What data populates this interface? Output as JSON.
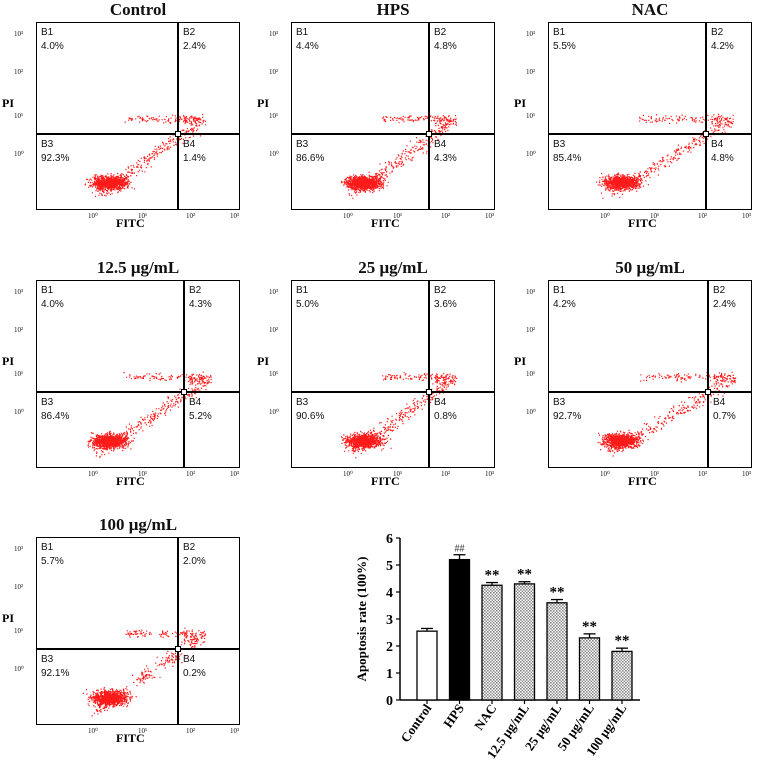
{
  "axis": {
    "x_label": "FITC",
    "y_label": "PI",
    "x_ticks": [
      "10⁰",
      "10¹",
      "10²",
      "10³"
    ],
    "y_ticks": [
      "10³",
      "10²",
      "10¹",
      "10⁰"
    ]
  },
  "panels": [
    {
      "title": "Control",
      "B1": "4.0%",
      "B2": "2.4%",
      "B3": "92.3%",
      "B4": "1.4%"
    },
    {
      "title": "HPS",
      "B1": "4.4%",
      "B2": "4.8%",
      "B3": "86.6%",
      "B4": "4.3%"
    },
    {
      "title": "NAC",
      "B1": "5.5%",
      "B2": "4.2%",
      "B3": "85.4%",
      "B4": "4.8%"
    },
    {
      "title": "12.5 μg/mL",
      "B1": "4.0%",
      "B2": "4.3%",
      "B3": "86.4%",
      "B4": "5.2%"
    },
    {
      "title": "25 μg/mL",
      "B1": "5.0%",
      "B2": "3.6%",
      "B3": "90.6%",
      "B4": "0.8%"
    },
    {
      "title": "50 μg/mL",
      "B1": "4.2%",
      "B2": "2.4%",
      "B3": "92.7%",
      "B4": "0.7%"
    },
    {
      "title": "100 μg/mL",
      "B1": "5.7%",
      "B2": "2.0%",
      "B3": "92.1%",
      "B4": "0.2%"
    }
  ],
  "quadrant_names": [
    "B1",
    "B2",
    "B3",
    "B4"
  ],
  "chart_data": {
    "type": "bar",
    "title": "",
    "xlabel": "",
    "ylabel": "Apoptosis rate (100%)",
    "ylim": [
      0,
      6
    ],
    "yticks": [
      "0",
      "1",
      "2",
      "3",
      "4",
      "5",
      "6"
    ],
    "categories": [
      "Control",
      "HPS",
      "NAC",
      "12.5 μg/mL",
      "25 μg/mL",
      "50 μg/mL",
      "100 μg/mL"
    ],
    "values": [
      2.55,
      5.2,
      4.25,
      4.3,
      3.6,
      2.3,
      1.8
    ],
    "errors": [
      0.1,
      0.18,
      0.1,
      0.08,
      0.12,
      0.15,
      0.12
    ],
    "annotations": [
      "",
      "##",
      "**",
      "**",
      "**",
      "**",
      "**"
    ],
    "fills": [
      "white",
      "black",
      "hatched",
      "hatched",
      "hatched",
      "hatched",
      "hatched"
    ]
  },
  "colors": {
    "dots": "#ff1a1a",
    "axis": "#000000",
    "bar_dark": "#000000",
    "bar_hatch": "#8a8a8a"
  }
}
